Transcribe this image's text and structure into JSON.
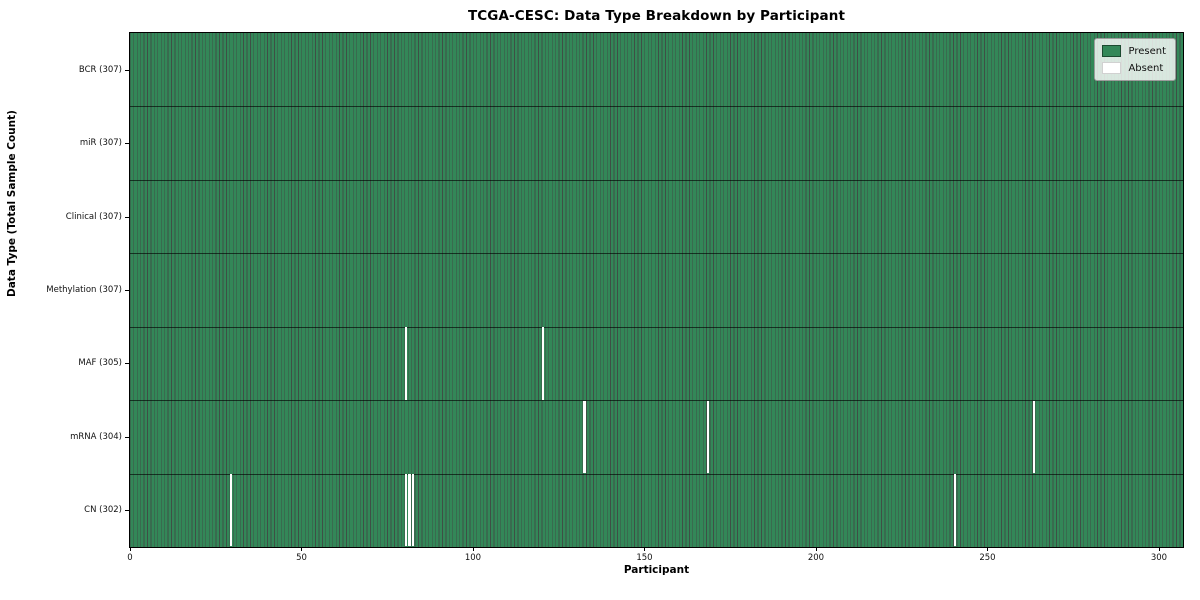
{
  "chart_data": {
    "type": "heatmap",
    "title": "TCGA-CESC: Data Type Breakdown by Participant",
    "xlabel": "Participant",
    "ylabel": "Data Type (Total Sample Count)",
    "x_ticks": [
      0,
      50,
      100,
      150,
      200,
      250,
      300
    ],
    "xlim": [
      0,
      307
    ],
    "n_participants": 307,
    "grid": false,
    "legend_position": "upper right",
    "legend": [
      {
        "label": "Present",
        "color": "#338758"
      },
      {
        "label": "Absent",
        "color": "#ffffff"
      }
    ],
    "rows": [
      {
        "label": "BCR (307)",
        "data_type": "BCR",
        "total_samples": 307,
        "absent_participants": []
      },
      {
        "label": "miR (307)",
        "data_type": "miR",
        "total_samples": 307,
        "absent_participants": []
      },
      {
        "label": "Clinical (307)",
        "data_type": "Clinical",
        "total_samples": 307,
        "absent_participants": []
      },
      {
        "label": "Methylation (307)",
        "data_type": "Methylation",
        "total_samples": 307,
        "absent_participants": []
      },
      {
        "label": "MAF (305)",
        "data_type": "MAF",
        "total_samples": 305,
        "absent_participants": [
          80,
          120
        ]
      },
      {
        "label": "mRNA (304)",
        "data_type": "mRNA",
        "total_samples": 304,
        "absent_participants": [
          132,
          168,
          263
        ]
      },
      {
        "label": "CN (302)",
        "data_type": "CN",
        "total_samples": 302,
        "absent_participants": [
          29,
          80,
          81,
          82,
          240
        ]
      }
    ],
    "colors": {
      "present": "#338758",
      "absent": "#ffffff",
      "cell_edge": "rgba(8,30,18,0.78)",
      "row_divider": "rgba(0,0,0,0.62)",
      "spine": "#000000",
      "legend_bg": "rgba(252,254,252,0.82)"
    }
  }
}
